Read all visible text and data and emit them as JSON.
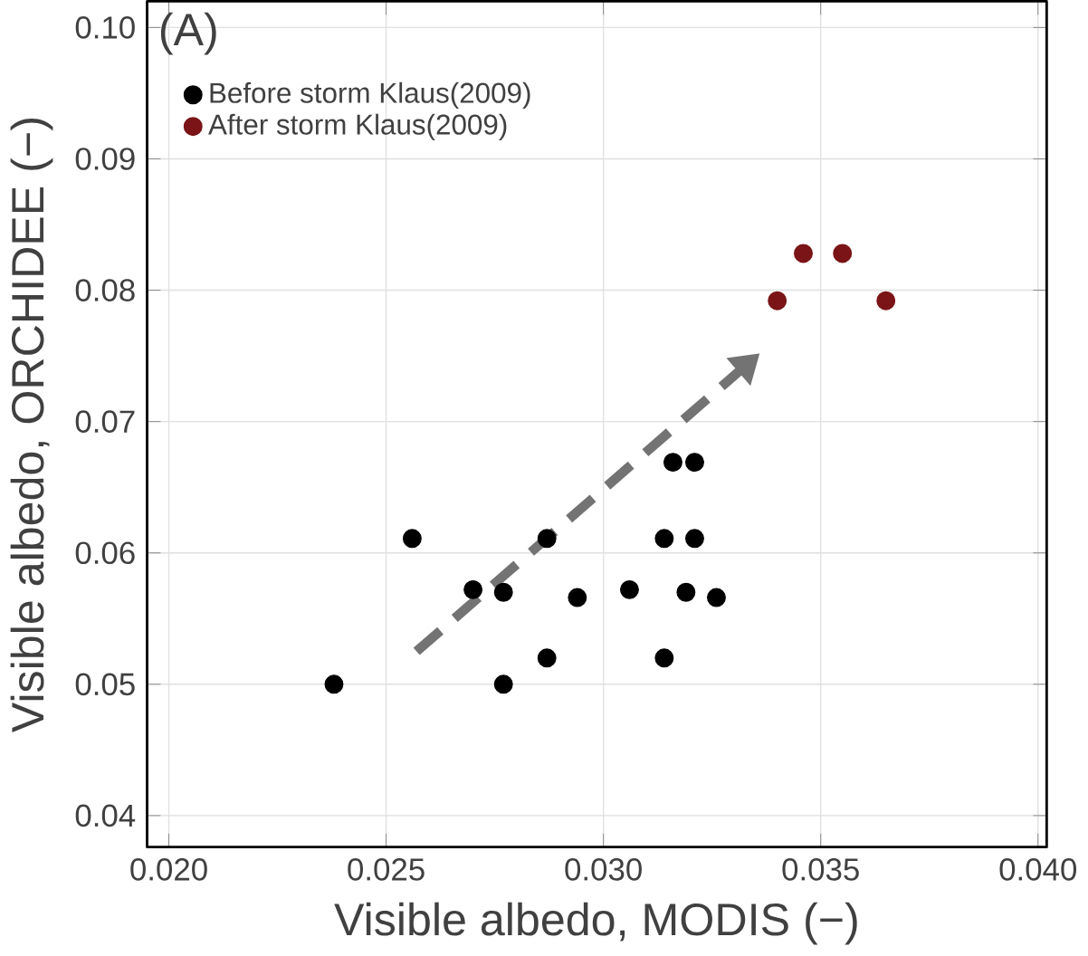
{
  "chart_data": {
    "type": "scatter",
    "xlabel": "Visible albedo, MODIS (−)",
    "ylabel": "Visible albedo, ORCHIDEE (−)",
    "annotations": [
      "(A)"
    ],
    "xlim": [
      0.0195,
      0.0402
    ],
    "ylim": [
      0.0376,
      0.102
    ],
    "xticks": [
      {
        "value": 0.02,
        "label": "0.020"
      },
      {
        "value": 0.025,
        "label": "0.025"
      },
      {
        "value": 0.03,
        "label": "0.030"
      },
      {
        "value": 0.035,
        "label": "0.035"
      },
      {
        "value": 0.04,
        "label": "0.040"
      }
    ],
    "yticks": [
      {
        "value": 0.04,
        "label": "0.04"
      },
      {
        "value": 0.05,
        "label": "0.05"
      },
      {
        "value": 0.06,
        "label": "0.06"
      },
      {
        "value": 0.07,
        "label": "0.07"
      },
      {
        "value": 0.08,
        "label": "0.08"
      },
      {
        "value": 0.09,
        "label": "0.09"
      },
      {
        "value": 0.1,
        "label": "0.10"
      }
    ],
    "grid": true,
    "legend": "top left",
    "marker": "circle",
    "series": [
      {
        "name": "Before storm Klaus(2009)",
        "color": "#000000",
        "x": [
          0.0238,
          0.0256,
          0.027,
          0.0277,
          0.0277,
          0.0287,
          0.0287,
          0.0294,
          0.0306,
          0.0314,
          0.0314,
          0.0316,
          0.0321,
          0.0321,
          0.0319,
          0.0326
        ],
        "values": [
          0.05,
          0.0611,
          0.0572,
          0.057,
          0.05,
          0.0611,
          0.052,
          0.0566,
          0.0572,
          0.0611,
          0.052,
          0.0669,
          0.0669,
          0.0611,
          0.057,
          0.0566
        ]
      },
      {
        "name": "After storm Klaus(2009)",
        "color": "#7a1416",
        "x": [
          0.034,
          0.0346,
          0.0355,
          0.0365
        ],
        "values": [
          0.0792,
          0.0828,
          0.0828,
          0.0792
        ]
      }
    ]
  }
}
